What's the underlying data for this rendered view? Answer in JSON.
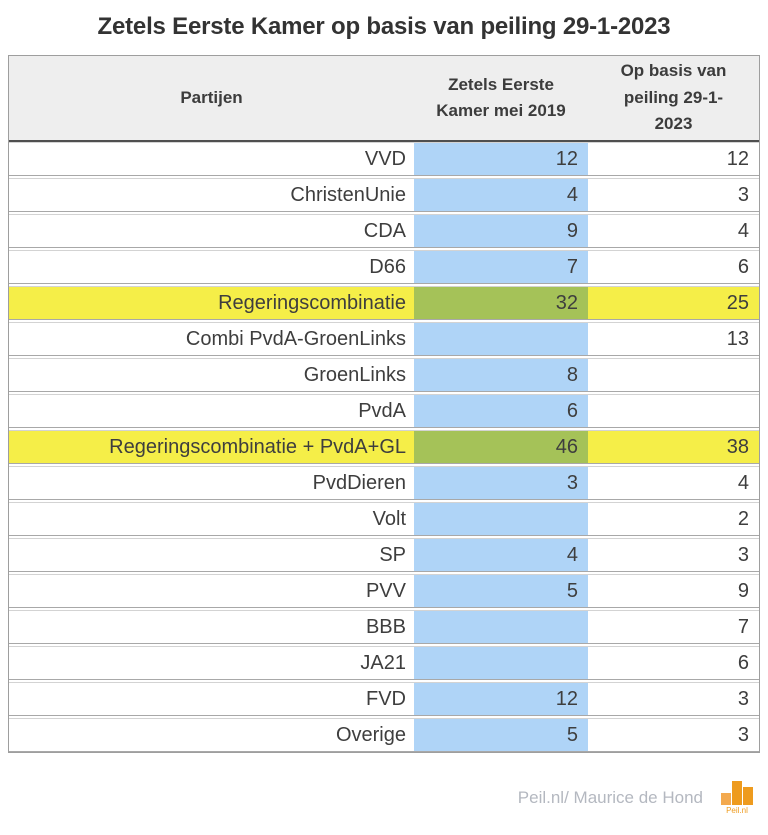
{
  "title": "Zetels Eerste Kamer op basis van peiling 29-1-2023",
  "table": {
    "columns": [
      "Partijen",
      "Zetels Eerste Kamer mei 2019",
      "Op basis van peiling 29-1-2023"
    ],
    "rows": [
      {
        "party": "VVD",
        "seats_2019": "12",
        "seats_poll": "12",
        "highlight": false
      },
      {
        "party": "ChristenUnie",
        "seats_2019": "4",
        "seats_poll": "3",
        "highlight": false
      },
      {
        "party": "CDA",
        "seats_2019": "9",
        "seats_poll": "4",
        "highlight": false
      },
      {
        "party": "D66",
        "seats_2019": "7",
        "seats_poll": "6",
        "highlight": false
      },
      {
        "party": "Regeringscombinatie",
        "seats_2019": "32",
        "seats_poll": "25",
        "highlight": true
      },
      {
        "party": "Combi PvdA-GroenLinks",
        "seats_2019": "",
        "seats_poll": "13",
        "highlight": false
      },
      {
        "party": "GroenLinks",
        "seats_2019": "8",
        "seats_poll": "",
        "highlight": false
      },
      {
        "party": "PvdA",
        "seats_2019": "6",
        "seats_poll": "",
        "highlight": false
      },
      {
        "party": "Regeringscombinatie + PvdA+GL",
        "seats_2019": "46",
        "seats_poll": "38",
        "highlight": true
      },
      {
        "party": "PvdDieren",
        "seats_2019": "3",
        "seats_poll": "4",
        "highlight": false
      },
      {
        "party": "Volt",
        "seats_2019": "",
        "seats_poll": "2",
        "highlight": false
      },
      {
        "party": "SP",
        "seats_2019": "4",
        "seats_poll": "3",
        "highlight": false
      },
      {
        "party": "PVV",
        "seats_2019": "5",
        "seats_poll": "9",
        "highlight": false
      },
      {
        "party": "BBB",
        "seats_2019": "",
        "seats_poll": "7",
        "highlight": false
      },
      {
        "party": "JA21",
        "seats_2019": "",
        "seats_poll": "6",
        "highlight": false
      },
      {
        "party": "FVD",
        "seats_2019": "12",
        "seats_poll": "3",
        "highlight": false
      },
      {
        "party": "Overige",
        "seats_2019": "5",
        "seats_poll": "3",
        "highlight": false
      }
    ]
  },
  "footer": {
    "credit": "Peil.nl/ Maurice de Hond",
    "logo_text": "Peil.nl"
  },
  "colors": {
    "column_2019_bg": "#afd4f7",
    "highlight_row_bg": "#f5ee48",
    "highlight_2019_bg": "#a5c258",
    "header_bg": "#eeeeee",
    "logo_orange": "#ee9b1e",
    "logo_orange_light": "#f3a94e",
    "credit_gray": "#b4b8c0"
  },
  "chart_data": {
    "type": "table",
    "title": "Zetels Eerste Kamer op basis van peiling 29-1-2023",
    "categories": [
      "VVD",
      "ChristenUnie",
      "CDA",
      "D66",
      "Regeringscombinatie",
      "Combi PvdA-GroenLinks",
      "GroenLinks",
      "PvdA",
      "Regeringscombinatie + PvdA+GL",
      "PvdDieren",
      "Volt",
      "SP",
      "PVV",
      "BBB",
      "JA21",
      "FVD",
      "Overige"
    ],
    "series": [
      {
        "name": "Zetels Eerste Kamer mei 2019",
        "values": [
          12,
          4,
          9,
          7,
          32,
          null,
          8,
          6,
          46,
          3,
          null,
          4,
          5,
          null,
          null,
          12,
          5
        ]
      },
      {
        "name": "Op basis van peiling 29-1-2023",
        "values": [
          12,
          3,
          4,
          6,
          25,
          13,
          null,
          null,
          38,
          4,
          2,
          3,
          9,
          7,
          6,
          3,
          3
        ]
      }
    ],
    "highlighted_rows": [
      "Regeringscombinatie",
      "Regeringscombinatie + PvdA+GL"
    ]
  }
}
